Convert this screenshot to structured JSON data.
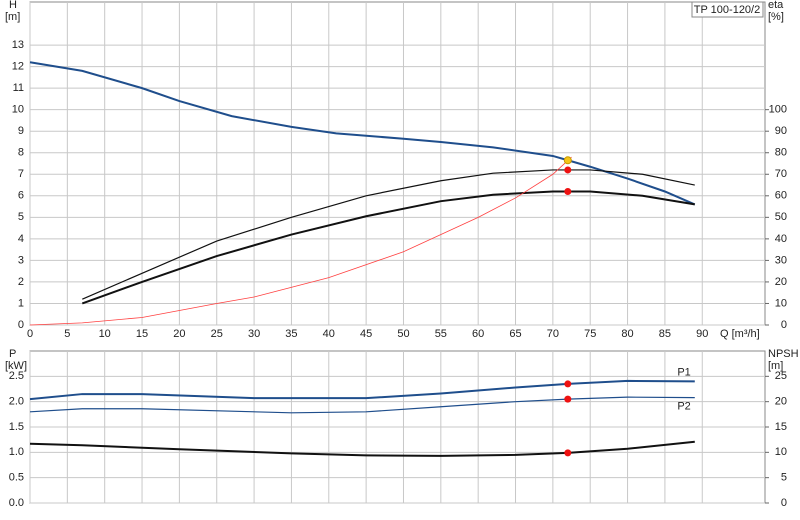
{
  "chart_data": [
    {
      "type": "line",
      "label": "TP 100-120/2",
      "ylabel": "H",
      "yunit": "[m]",
      "y2label": "eta",
      "y2unit": "[%]",
      "xlabel": "Q [m³/h]",
      "xlim": [
        0,
        98.4
      ],
      "xticks": [
        0,
        5,
        10,
        15,
        20,
        25,
        30,
        35,
        40,
        45,
        50,
        55,
        60,
        65,
        70,
        75,
        80,
        85,
        90
      ],
      "ylim": [
        0,
        15
      ],
      "yticks": [
        0,
        1,
        2,
        3,
        4,
        5,
        6,
        7,
        8,
        9,
        10,
        11,
        12,
        13
      ],
      "y2lim": [
        0,
        150
      ],
      "y2ticks": [
        0,
        10,
        20,
        30,
        40,
        50,
        60,
        70,
        80,
        90,
        100
      ],
      "grid": true,
      "series": [
        {
          "color": "#1f4e8c",
          "line_width": 2,
          "x": [
            0,
            7,
            15,
            20,
            27,
            35,
            41,
            50,
            55,
            62,
            70,
            72,
            75,
            80,
            85,
            89
          ],
          "values": [
            12.2,
            11.8,
            11.0,
            10.4,
            9.7,
            9.2,
            8.9,
            8.65,
            8.5,
            8.25,
            7.85,
            7.65,
            7.35,
            6.8,
            6.2,
            5.6
          ]
        },
        {
          "color": "#111111",
          "line_width": 1.2,
          "axis": "y2",
          "x": [
            7,
            15,
            25,
            35,
            45,
            55,
            62,
            70,
            75,
            82,
            89
          ],
          "values": [
            12,
            24,
            39,
            50,
            60,
            67,
            70.5,
            72,
            72,
            70,
            65
          ]
        },
        {
          "color": "#111111",
          "line_width": 2,
          "axis": "y2",
          "x": [
            7,
            15,
            25,
            35,
            45,
            55,
            62,
            70,
            75,
            82,
            89
          ],
          "values": [
            10,
            20,
            32,
            42,
            50.5,
            57.5,
            60.5,
            62,
            62,
            60,
            56
          ]
        },
        {
          "color": "#ff4040",
          "line_width": 0.8,
          "x": [
            0,
            7,
            15,
            25,
            30,
            40,
            50,
            60,
            65,
            70,
            72.5
          ],
          "values": [
            0,
            0.1,
            0.35,
            1.0,
            1.3,
            2.2,
            3.4,
            5.0,
            5.9,
            7.0,
            7.8
          ]
        }
      ],
      "markers": [
        {
          "x": 72,
          "y": 7.65,
          "color": "#f5c518"
        },
        {
          "x": 72,
          "y": 72,
          "axis": "y2",
          "color": "#ee1111"
        },
        {
          "x": 72,
          "y": 62,
          "axis": "y2",
          "color": "#ee1111"
        }
      ]
    },
    {
      "type": "line",
      "ylabel": "P",
      "yunit": "[kW]",
      "y2label": "NPSH",
      "y2unit": "[m]",
      "xlim": [
        0,
        98.4
      ],
      "xticks": [
        0,
        5,
        10,
        15,
        20,
        25,
        30,
        35,
        40,
        45,
        50,
        55,
        60,
        65,
        70,
        75,
        80,
        85,
        90
      ],
      "ylim": [
        0,
        3
      ],
      "yticks": [
        {
          "value": 0,
          "label": "0.0"
        },
        0.5,
        {
          "value": 1,
          "label": "1.0"
        },
        1.5,
        {
          "value": 2,
          "label": "2.0"
        },
        2.5
      ],
      "y2lim": [
        0,
        30
      ],
      "y2ticks": [
        0,
        5,
        10,
        15,
        20,
        25
      ],
      "grid": true,
      "series": [
        {
          "name": "P1",
          "color": "#1f4e8c",
          "line_width": 2,
          "x": [
            0,
            7,
            15,
            30,
            45,
            55,
            65,
            72,
            80,
            89
          ],
          "values": [
            2.05,
            2.15,
            2.15,
            2.07,
            2.07,
            2.16,
            2.28,
            2.35,
            2.41,
            2.4
          ]
        },
        {
          "name": "P2",
          "color": "#1f4e8c",
          "line_width": 1.2,
          "x": [
            0,
            7,
            15,
            35,
            45,
            55,
            65,
            72,
            80,
            89
          ],
          "values": [
            1.8,
            1.86,
            1.86,
            1.78,
            1.8,
            1.9,
            2.0,
            2.05,
            2.09,
            2.08
          ]
        },
        {
          "color": "#111111",
          "line_width": 2,
          "axis": "y2",
          "x": [
            0,
            7,
            20,
            35,
            45,
            55,
            65,
            72,
            80,
            89
          ],
          "values": [
            11.7,
            11.4,
            10.6,
            9.8,
            9.4,
            9.3,
            9.5,
            9.9,
            10.7,
            12.1
          ]
        }
      ],
      "markers": [
        {
          "x": 72,
          "y": 2.35,
          "color": "#ee1111"
        },
        {
          "x": 72,
          "y": 2.05,
          "color": "#ee1111"
        },
        {
          "x": 72,
          "y": 9.9,
          "axis": "y2",
          "color": "#ee1111"
        }
      ]
    }
  ]
}
